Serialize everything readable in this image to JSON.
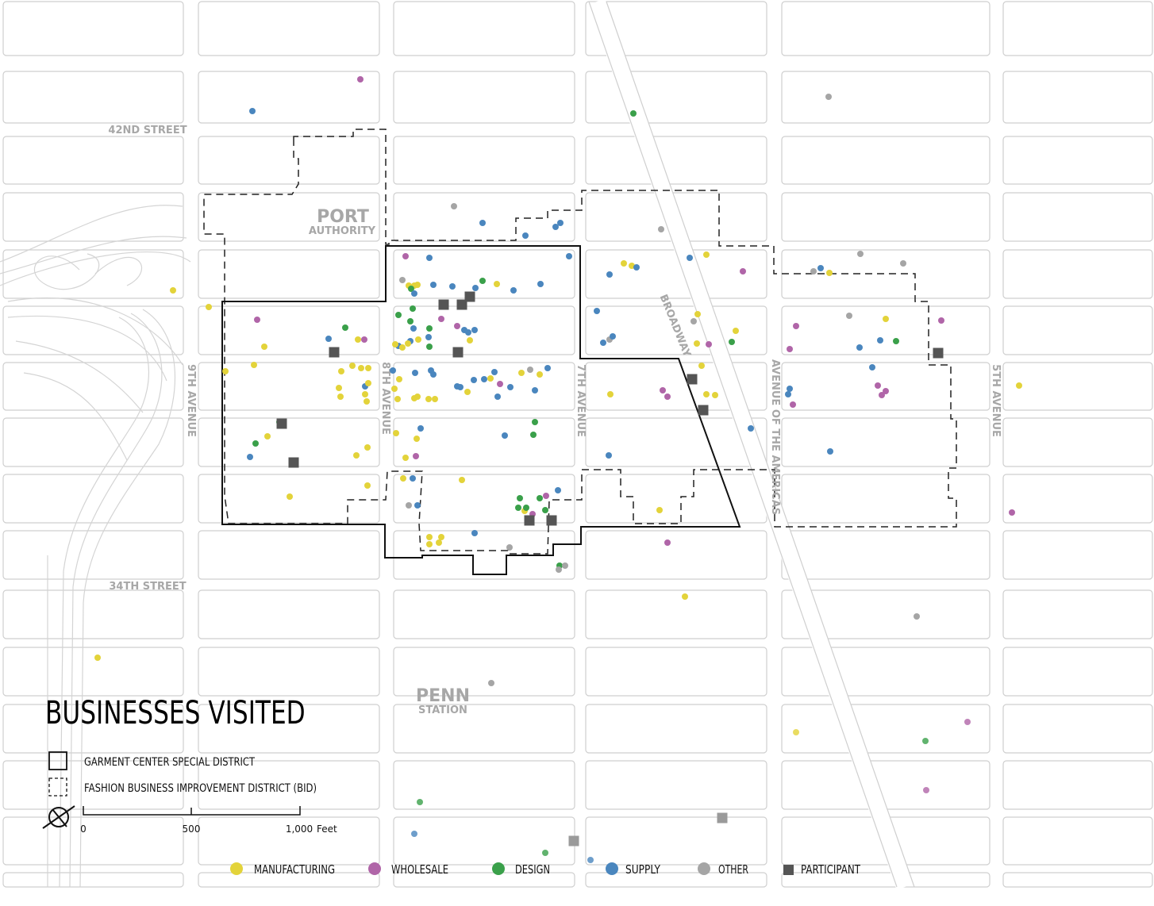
{
  "map": {
    "title": "BUSINESSES VISITED",
    "landmarks": {
      "port_authority_line1": "PORT",
      "port_authority_line2": "AUTHORITY",
      "penn_line1": "PENN",
      "penn_line2": "STATION"
    },
    "streets": {
      "s42": "42ND STREET",
      "s34": "34TH STREET",
      "ave9": "9TH AVENUE",
      "ave8": "8TH AVENUE",
      "ave7": "7TH AVENUE",
      "broadway": "BROADWAY",
      "americas": "AVENUE OF THE AMERICAS",
      "ave5": "5TH AVENUE"
    },
    "district_legend": [
      {
        "key": "special",
        "label": "GARMENT CENTER SPECIAL DISTRICT",
        "style": "solid"
      },
      {
        "key": "bid",
        "label": "FASHION BUSINESS IMPROVEMENT DISTRICT (BID)",
        "style": "dashed"
      }
    ],
    "scale_bar": {
      "labels": [
        "0",
        "500",
        "1,000"
      ],
      "unit": "Feet"
    },
    "north_arrow": "compass-icon",
    "categories": [
      {
        "key": "M",
        "label": "MANUFACTURING",
        "color": "#e3d33a"
      },
      {
        "key": "W",
        "label": "WHOLESALE",
        "color": "#b065a8"
      },
      {
        "key": "D",
        "label": "DESIGN",
        "color": "#3aa04a"
      },
      {
        "key": "S",
        "label": "SUPPLY",
        "color": "#4a86be"
      },
      {
        "key": "O",
        "label": "OTHER",
        "color": "#a5a5a5"
      },
      {
        "key": "P",
        "label": "PARTICIPANT",
        "color": "#555555"
      }
    ]
  }
}
